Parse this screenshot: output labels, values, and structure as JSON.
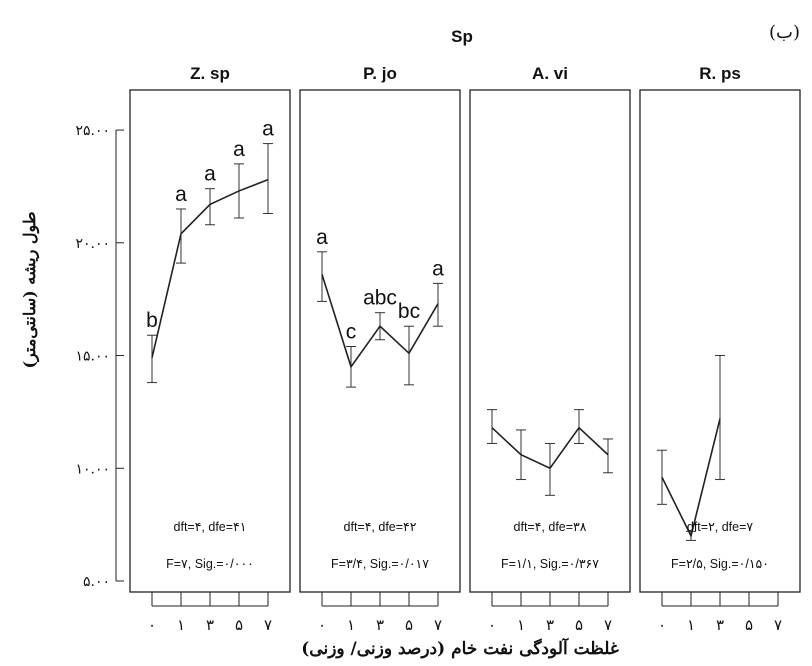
{
  "figure": {
    "tag": "(ب)",
    "header": "Sp",
    "ylabel": "طول ریشه (سانتی‌متر)",
    "xlabel": "غلظت آلودگی نفت خام (درصد وزنی/ وزنی)"
  },
  "chart_data": {
    "type": "line",
    "ylim": [
      5,
      26.2
    ],
    "y_ticks": [
      {
        "value": 5,
        "label": "۵.۰۰"
      },
      {
        "value": 10,
        "label": "۱۰.۰۰"
      },
      {
        "value": 15,
        "label": "۱۵.۰۰"
      },
      {
        "value": 20,
        "label": "۲۰.۰۰"
      },
      {
        "value": 25,
        "label": "۲۵.۰۰"
      }
    ],
    "x_categories": [
      "۰",
      "۱",
      "۳",
      "۵",
      "۷"
    ],
    "panels": [
      {
        "title": "Z. sp",
        "values": [
          14.9,
          20.4,
          21.7,
          22.3,
          22.8
        ],
        "lower": [
          13.8,
          19.1,
          20.8,
          21.1,
          21.3
        ],
        "upper": [
          15.9,
          21.5,
          22.4,
          23.5,
          24.4
        ],
        "letters": [
          "b",
          "a",
          "a",
          "a",
          "a"
        ],
        "stats1": "dft=۴, dfe=۴۱",
        "stats2": "F=۷, Sig.=۰/۰۰۰"
      },
      {
        "title": "P. jo",
        "values": [
          18.6,
          14.5,
          16.3,
          15.1,
          17.3
        ],
        "lower": [
          17.4,
          13.6,
          15.7,
          13.7,
          16.3
        ],
        "upper": [
          19.6,
          15.4,
          16.9,
          16.3,
          18.2
        ],
        "letters": [
          "a",
          "c",
          "abc",
          "bc",
          "a"
        ],
        "stats1": "dft=۴, dfe=۴۲",
        "stats2": "F=۳/۴, Sig.=۰/۰۱۷"
      },
      {
        "title": "A. vi",
        "values": [
          11.8,
          10.6,
          10.0,
          11.8,
          10.6
        ],
        "lower": [
          11.1,
          9.5,
          8.8,
          11.1,
          9.8
        ],
        "upper": [
          12.6,
          11.7,
          11.1,
          12.6,
          11.3
        ],
        "letters": [],
        "stats1": "dft=۴, dfe=۳۸",
        "stats2": "F=۱/۱, Sig.=۰/۳۶۷"
      },
      {
        "title": "R. ps",
        "values": [
          9.6,
          7.0,
          12.2,
          null,
          null
        ],
        "lower": [
          8.4,
          6.8,
          9.5,
          null,
          null
        ],
        "upper": [
          10.8,
          7.2,
          15.0,
          null,
          null
        ],
        "letters": [],
        "stats1": "dft=۲, dfe=۷",
        "stats2": "F=۲/۵, Sig.=۰/۱۵۰"
      }
    ]
  }
}
